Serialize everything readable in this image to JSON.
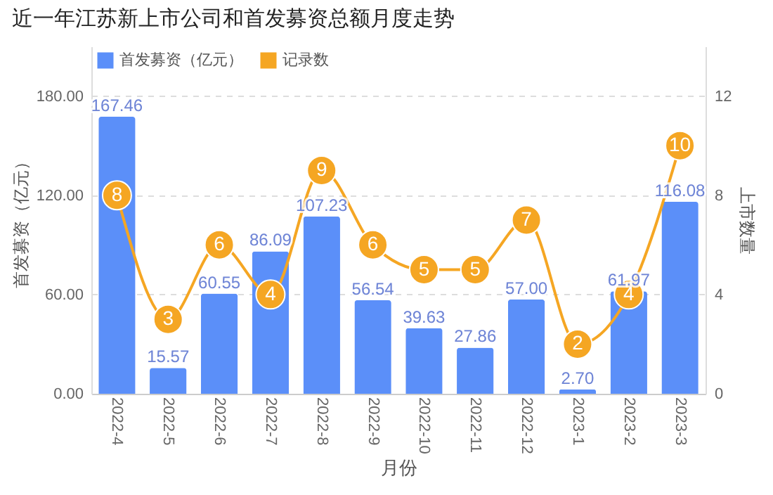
{
  "chart_data": {
    "type": "bar",
    "title": "近一年江苏新上市公司和首发募资总额月度走势",
    "xlabel": "月份",
    "ylabel": "首发募资（亿元）",
    "y2label": "上市数量",
    "categories": [
      "2022-4",
      "2022-5",
      "2022-6",
      "2022-7",
      "2022-8",
      "2022-9",
      "2022-10",
      "2022-11",
      "2022-12",
      "2023-1",
      "2023-2",
      "2023-3"
    ],
    "series": [
      {
        "name": "首发募资（亿元）",
        "color": "#5b8ff9",
        "values": [
          167.46,
          15.57,
          60.55,
          86.09,
          107.23,
          56.54,
          39.63,
          27.86,
          57.0,
          2.7,
          61.97,
          116.08
        ],
        "value_labels": [
          "167.46",
          "15.57",
          "60.55",
          "86.09",
          "107.23",
          "56.54",
          "39.63",
          "27.86",
          "57.00",
          "2.70",
          "61.97",
          "116.08"
        ]
      },
      {
        "name": "记录数",
        "type": "line",
        "axis": "y2",
        "color": "#f5a623",
        "marker": "circle",
        "values": [
          8,
          3,
          6,
          4,
          9,
          6,
          5,
          5,
          7,
          2,
          4,
          10
        ]
      }
    ],
    "data_labels": true,
    "ylim": [
      0,
      210
    ],
    "yticks": [
      {
        "value": 0,
        "label": "0.00"
      },
      {
        "value": 60,
        "label": "60.00"
      },
      {
        "value": 120,
        "label": "120.00"
      },
      {
        "value": 180,
        "label": "180.00"
      }
    ],
    "y2lim": [
      0,
      14
    ],
    "y2ticks": [
      0,
      4,
      8,
      12
    ],
    "grid": "y",
    "legend": "top left"
  }
}
